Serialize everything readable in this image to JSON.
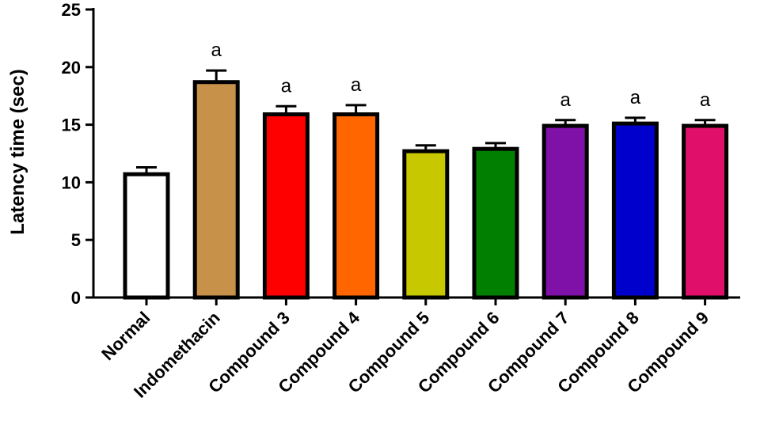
{
  "chart_data": {
    "type": "bar",
    "ylabel": "Latency time (sec)",
    "xlabel": "",
    "ylim": [
      0,
      25
    ],
    "yticks": [
      0,
      5,
      10,
      15,
      20,
      25
    ],
    "categories": [
      "Normal",
      "Indomethacin",
      "Compound 3",
      "Compound 4",
      "Compound 5",
      "Compound 6",
      "Compound 7",
      "Compound 8",
      "Compound 9"
    ],
    "values": [
      10.7,
      18.7,
      15.9,
      15.9,
      12.7,
      12.9,
      14.9,
      15.1,
      14.9
    ],
    "errors": [
      0.6,
      1.0,
      0.7,
      0.8,
      0.5,
      0.5,
      0.5,
      0.5,
      0.5
    ],
    "significance": [
      "",
      "a",
      "a",
      "a",
      "",
      "",
      "a",
      "a",
      "a"
    ],
    "colors": [
      "#FFFFFF",
      "#C8914A",
      "#FF0000",
      "#FF6600",
      "#C8C800",
      "#007F00",
      "#7F10A8",
      "#0000CC",
      "#E0106A"
    ],
    "grid": false,
    "legend": "none"
  }
}
